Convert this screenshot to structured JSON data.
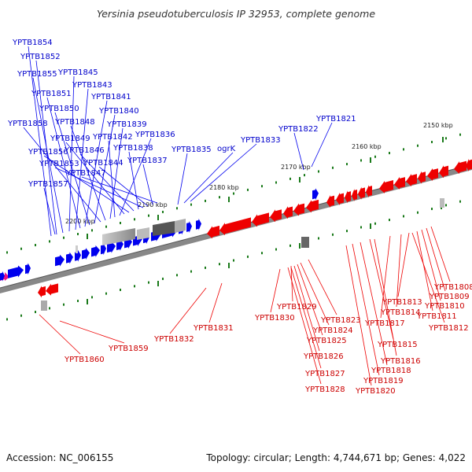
{
  "title": "Yersinia pseudotuberculosis IP 32953, complete genome",
  "footer": {
    "accession": "Accession: NC_006155",
    "topology": "Topology: circular; Length: 4,744,671 bp; Genes: 4,022"
  },
  "colors": {
    "forward_gene": "#0000ee",
    "reverse_gene": "#ee0000",
    "label_forward": "#0000cc",
    "label_reverse": "#cc0000",
    "tick": "#1a7a1a",
    "backbone": "#777777",
    "rna_gray": "#999999",
    "pink": "#ee1188"
  },
  "scale_labels": [
    "2150 kbp",
    "2160 kbp",
    "2170 kbp",
    "2180 kbp",
    "2190 kbp",
    "2200 kbp"
  ],
  "forward_genes_labels": [
    "YPTB1854",
    "YPTB1852",
    "YPTB1855",
    "YPTB1845",
    "YPTB1843",
    "YPTB1851",
    "YPTB1841",
    "YPTB1850",
    "YPTB1840",
    "YPTB1858",
    "YPTB1848",
    "YPTB1839",
    "YPTB1842",
    "YPTB1836",
    "YPTB1849",
    "YPTB1822",
    "YPTB1821",
    "YPTB1856",
    "YPTB1846",
    "YPTB1838",
    "YPTB1835",
    "ogrK",
    "YPTB1833",
    "YPTB1853",
    "YPTB1844",
    "YPTB1837",
    "YPTB1847",
    "YPTB1857"
  ],
  "reverse_genes_labels": [
    "YPTB1808",
    "YPTB1809",
    "YPTB1810",
    "YPTB1813",
    "YPTB1811",
    "YPTB1814",
    "YPTB1812",
    "YPTB1829",
    "YPTB1830",
    "YPTB1823",
    "YPTB1817",
    "YPTB1824",
    "YPTB1831",
    "YPTB1832",
    "YPTB1825",
    "YPTB1815",
    "YPTB1859",
    "YPTB1826",
    "YPTB1860",
    "YPTB1816",
    "YPTB1818",
    "YPTB1827",
    "YPTB1819",
    "YPTB1828",
    "YPTB1820"
  ]
}
